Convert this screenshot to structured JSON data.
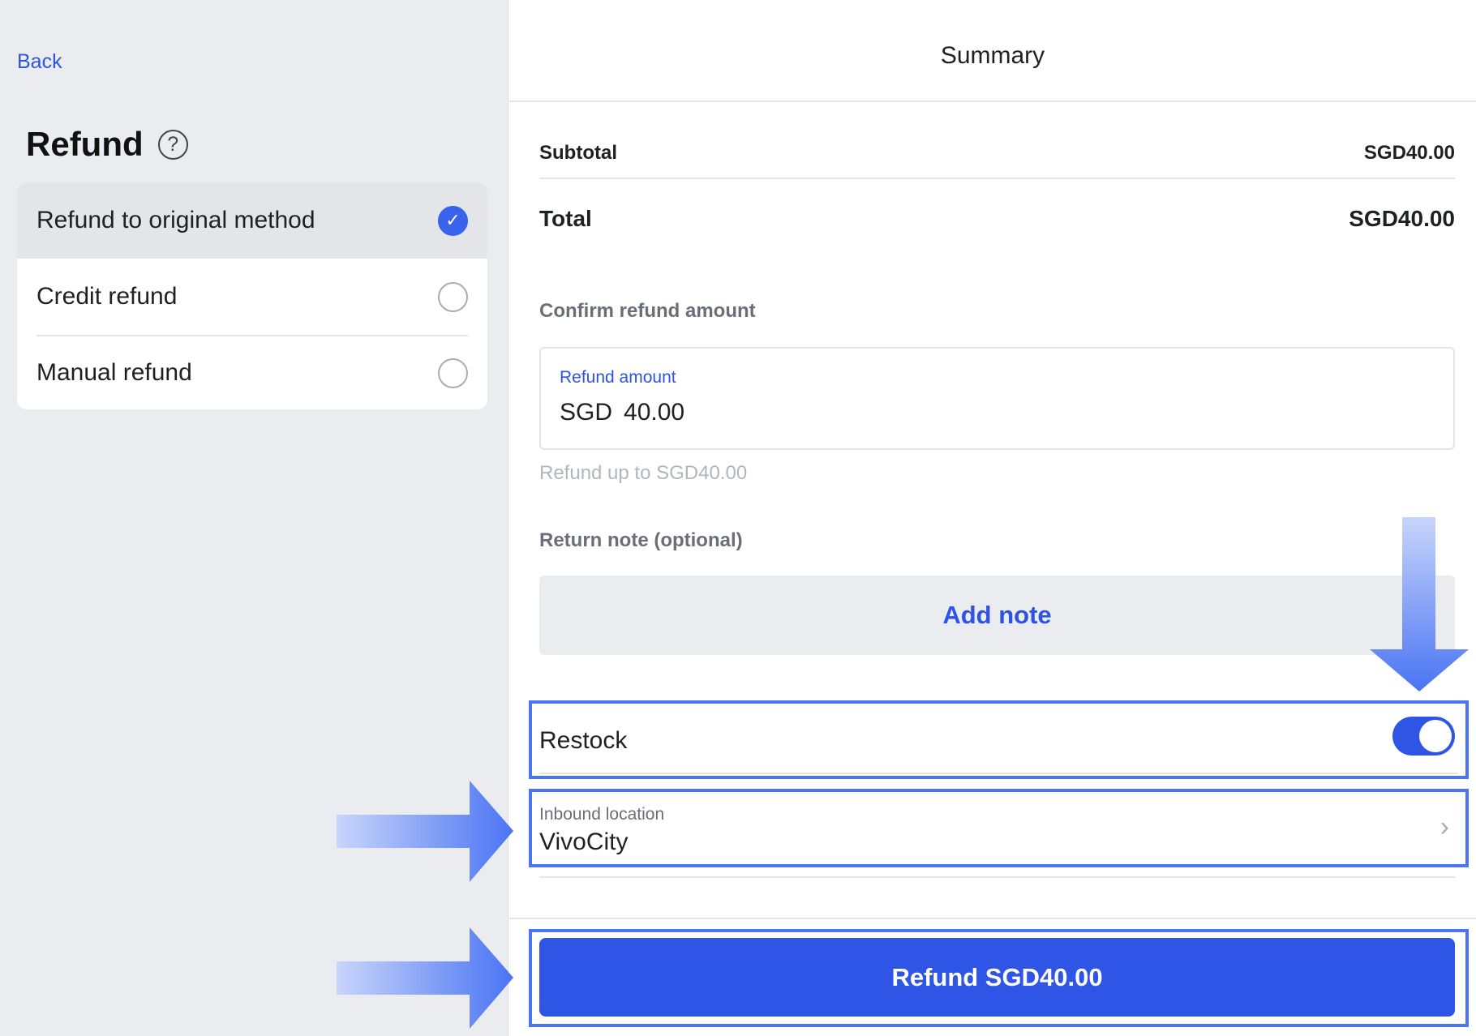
{
  "left": {
    "back": "Back",
    "title": "Refund",
    "options": [
      {
        "label": "Refund to original method",
        "selected": true
      },
      {
        "label": "Credit refund",
        "selected": false
      },
      {
        "label": "Manual refund",
        "selected": false
      }
    ]
  },
  "summary": {
    "title": "Summary",
    "subtotal_label": "Subtotal",
    "subtotal_value": "SGD40.00",
    "total_label": "Total",
    "total_value": "SGD40.00",
    "confirm_label": "Confirm refund amount",
    "amount_label": "Refund amount",
    "currency": "SGD",
    "amount_value": "40.00",
    "amount_hint": "Refund up to SGD40.00",
    "note_label": "Return note (optional)",
    "add_note": "Add note",
    "restock_label": "Restock",
    "restock_on": true,
    "inbound_label": "Inbound location",
    "inbound_value": "VivoCity",
    "refund_button": "Refund SGD40.00"
  },
  "colors": {
    "accent": "#2e55e6",
    "highlight": "#4a74f3"
  }
}
